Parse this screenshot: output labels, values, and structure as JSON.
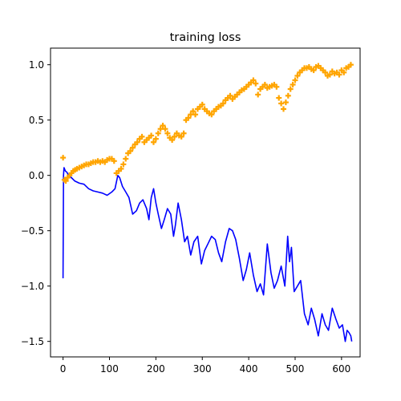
{
  "chart_data": {
    "type": "line",
    "title": "training loss",
    "xlabel": "",
    "ylabel": "",
    "xlim": [
      -27,
      640
    ],
    "ylim": [
      -1.64,
      1.15
    ],
    "xticks": [
      0,
      100,
      200,
      300,
      400,
      500,
      600
    ],
    "yticks": [
      -1.5,
      -1.0,
      -0.5,
      0.0,
      0.5,
      1.0
    ],
    "grid": false,
    "legend": "none",
    "series": [
      {
        "kind": "line",
        "color": "#0000ff",
        "x": [
          0,
          1,
          2,
          3,
          5,
          8,
          12,
          18,
          25,
          35,
          45,
          55,
          65,
          75,
          85,
          95,
          105,
          112,
          118,
          122,
          128,
          135,
          142,
          150,
          158,
          165,
          172,
          180,
          185,
          190,
          195,
          200,
          205,
          212,
          218,
          225,
          232,
          238,
          242,
          248,
          255,
          262,
          268,
          275,
          282,
          290,
          298,
          305,
          312,
          320,
          328,
          335,
          342,
          350,
          358,
          365,
          372,
          380,
          388,
          395,
          402,
          410,
          418,
          425,
          432,
          440,
          448,
          455,
          462,
          470,
          478,
          484,
          488,
          492,
          498,
          505,
          512,
          520,
          528,
          535,
          542,
          550,
          558,
          565,
          572,
          580,
          588,
          595,
          602,
          608,
          612,
          616,
          620,
          622
        ],
        "y": [
          -0.93,
          0.0,
          0.07,
          0.06,
          0.04,
          0.03,
          0.0,
          -0.02,
          -0.05,
          -0.07,
          -0.08,
          -0.12,
          -0.14,
          -0.15,
          -0.16,
          -0.18,
          -0.15,
          -0.12,
          0.0,
          -0.02,
          -0.1,
          -0.15,
          -0.2,
          -0.35,
          -0.32,
          -0.25,
          -0.22,
          -0.3,
          -0.4,
          -0.2,
          -0.12,
          -0.25,
          -0.35,
          -0.48,
          -0.4,
          -0.3,
          -0.35,
          -0.55,
          -0.45,
          -0.25,
          -0.4,
          -0.6,
          -0.55,
          -0.72,
          -0.6,
          -0.55,
          -0.8,
          -0.68,
          -0.62,
          -0.55,
          -0.58,
          -0.7,
          -0.78,
          -0.6,
          -0.48,
          -0.5,
          -0.58,
          -0.75,
          -0.95,
          -0.85,
          -0.7,
          -0.9,
          -1.05,
          -0.98,
          -1.08,
          -0.62,
          -0.88,
          -1.02,
          -0.95,
          -0.82,
          -1.0,
          -0.55,
          -0.78,
          -0.65,
          -1.05,
          -1.0,
          -0.95,
          -1.25,
          -1.35,
          -1.2,
          -1.3,
          -1.45,
          -1.25,
          -1.35,
          -1.4,
          -1.2,
          -1.3,
          -1.38,
          -1.35,
          -1.5,
          -1.4,
          -1.42,
          -1.45,
          -1.5
        ]
      },
      {
        "kind": "scatter",
        "marker": "plus",
        "color": "#ffa500",
        "x": [
          0,
          3,
          6,
          10,
          14,
          18,
          22,
          26,
          30,
          35,
          40,
          45,
          50,
          55,
          60,
          65,
          70,
          75,
          80,
          85,
          90,
          95,
          100,
          105,
          110,
          115,
          120,
          125,
          130,
          135,
          140,
          145,
          150,
          155,
          160,
          165,
          170,
          175,
          180,
          185,
          190,
          195,
          200,
          205,
          210,
          215,
          220,
          225,
          230,
          235,
          240,
          245,
          250,
          255,
          260,
          265,
          270,
          275,
          280,
          285,
          290,
          295,
          300,
          305,
          310,
          315,
          320,
          325,
          330,
          335,
          340,
          345,
          350,
          355,
          360,
          365,
          370,
          375,
          380,
          385,
          390,
          395,
          400,
          405,
          410,
          415,
          420,
          425,
          430,
          435,
          440,
          445,
          450,
          455,
          460,
          465,
          470,
          475,
          480,
          485,
          490,
          495,
          500,
          505,
          510,
          515,
          520,
          525,
          530,
          535,
          540,
          545,
          550,
          555,
          560,
          565,
          570,
          575,
          580,
          585,
          590,
          595,
          600,
          605,
          610,
          615,
          620
        ],
        "y": [
          0.16,
          -0.04,
          -0.05,
          -0.02,
          0.0,
          0.02,
          0.04,
          0.05,
          0.06,
          0.07,
          0.08,
          0.09,
          0.1,
          0.1,
          0.11,
          0.12,
          0.12,
          0.13,
          0.12,
          0.13,
          0.12,
          0.14,
          0.15,
          0.15,
          0.13,
          0.02,
          0.04,
          0.06,
          0.1,
          0.15,
          0.2,
          0.22,
          0.25,
          0.28,
          0.3,
          0.33,
          0.35,
          0.3,
          0.32,
          0.34,
          0.36,
          0.3,
          0.33,
          0.38,
          0.42,
          0.45,
          0.42,
          0.38,
          0.34,
          0.32,
          0.35,
          0.38,
          0.36,
          0.35,
          0.38,
          0.5,
          0.52,
          0.55,
          0.58,
          0.55,
          0.6,
          0.62,
          0.64,
          0.6,
          0.58,
          0.56,
          0.55,
          0.58,
          0.6,
          0.62,
          0.63,
          0.65,
          0.68,
          0.7,
          0.72,
          0.69,
          0.71,
          0.73,
          0.75,
          0.77,
          0.78,
          0.8,
          0.82,
          0.84,
          0.86,
          0.83,
          0.73,
          0.78,
          0.8,
          0.82,
          0.79,
          0.8,
          0.81,
          0.82,
          0.8,
          0.7,
          0.65,
          0.6,
          0.66,
          0.72,
          0.78,
          0.82,
          0.86,
          0.9,
          0.93,
          0.95,
          0.97,
          0.97,
          0.98,
          0.96,
          0.95,
          0.98,
          0.99,
          0.97,
          0.95,
          0.93,
          0.9,
          0.91,
          0.94,
          0.92,
          0.93,
          0.91,
          0.95,
          0.93,
          0.97,
          0.98,
          1.0
        ]
      }
    ]
  },
  "colors": {
    "line": "#0000ff",
    "markers": "#ffa500",
    "axes": "#000000"
  }
}
